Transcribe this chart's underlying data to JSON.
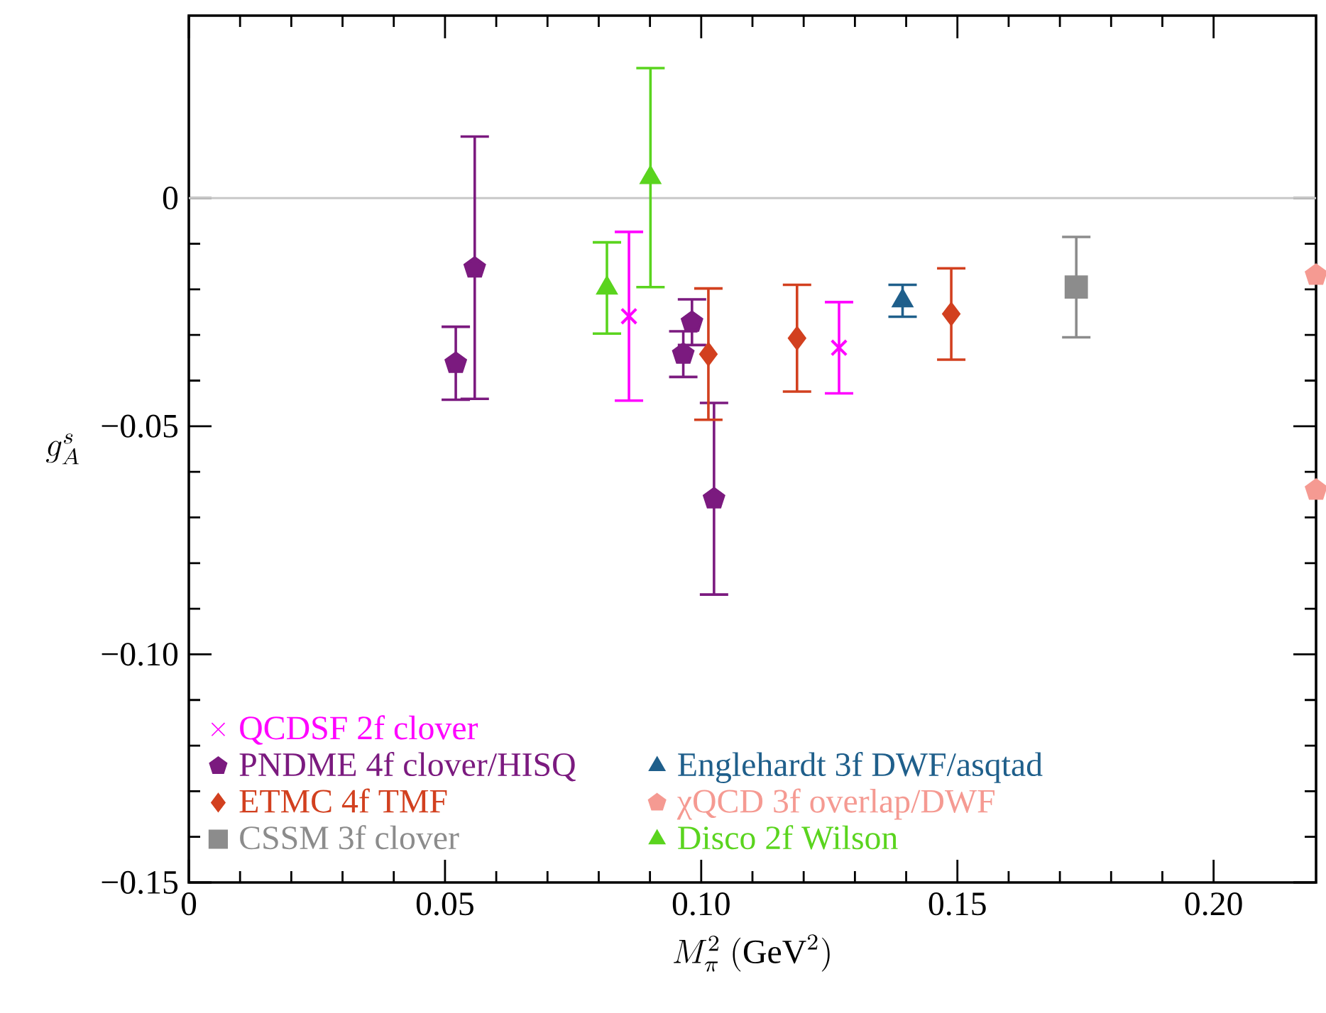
{
  "chart_data": {
    "type": "scatter",
    "xlabel": "M_\\pi^2\\ (\\mathrm{GeV}^2)",
    "ylabel": "g_A^s",
    "xlim": [
      0,
      0.22
    ],
    "ylim": [
      -0.15,
      0.04
    ],
    "xticks": [
      0,
      0.05,
      {
        "value": 0.1,
        "label": "0.10"
      },
      0.15,
      {
        "value": 0.2,
        "label": "0.20"
      }
    ],
    "yticks": [
      0,
      {
        "value": -0.05,
        "label": "−0.05"
      },
      {
        "value": -0.1,
        "label": "−0.10"
      },
      {
        "value": -0.15,
        "label": "−0.15"
      }
    ],
    "ref_lines": [
      {
        "axis": "y",
        "value": 0,
        "color": "#c8c8c8"
      }
    ],
    "legend": "bottom left",
    "grid": false,
    "series": [
      {
        "name": "QCDSF 2f clover",
        "color": "#ff00ff",
        "marker": "cross",
        "x": [
          0.0859,
          0.1269
        ],
        "values": [
          -0.0259,
          -0.0328
        ],
        "errors": [
          0.0185,
          0.01
        ]
      },
      {
        "name": "PNDME 4f clover/HISQ",
        "color": "#7b1a7f",
        "marker": "circle",
        "x": [
          0.0521,
          0.0558,
          0.0965,
          0.0982,
          0.1025
        ],
        "values": [
          -0.0362,
          -0.0153,
          -0.0342,
          -0.0272,
          -0.0659
        ],
        "errors": [
          0.008,
          [
            -0.044,
            0.0135
          ],
          0.005,
          0.005,
          0.021
        ]
      },
      {
        "name": "ETMC 4f TMF",
        "color": "#d2401f",
        "marker": "diamond",
        "x": [
          0.1014,
          0.1187,
          0.1488
        ],
        "values": [
          -0.0342,
          -0.0307,
          -0.0254
        ],
        "errors": [
          0.0144,
          0.0117,
          0.01
        ]
      },
      {
        "name": "CSSM 3f clover",
        "color": "#8c8c8c",
        "marker": "square",
        "x": [
          0.1732
        ],
        "values": [
          -0.0195
        ],
        "errors": [
          0.011
        ]
      },
      {
        "name": "Englehardt 3f DWF/asqtad",
        "color": "#1f5f8b",
        "marker": "triangle",
        "x": [
          0.1393
        ],
        "values": [
          -0.0225
        ],
        "errors": [
          0.0035
        ]
      },
      {
        "name": "χQCD 3f overlap/DWF",
        "color": "#f59a92",
        "marker": "circle",
        "x": [
          0.22,
          0.22
        ],
        "values": [
          -0.0169,
          -0.064
        ]
      },
      {
        "name": "Disco 2f Wilson",
        "color": "#5ad41e",
        "marker": "triangle",
        "x": [
          0.0816,
          0.0901
        ],
        "values": [
          -0.0197,
          0.0045
        ],
        "errors": [
          0.01,
          0.024
        ]
      }
    ]
  }
}
